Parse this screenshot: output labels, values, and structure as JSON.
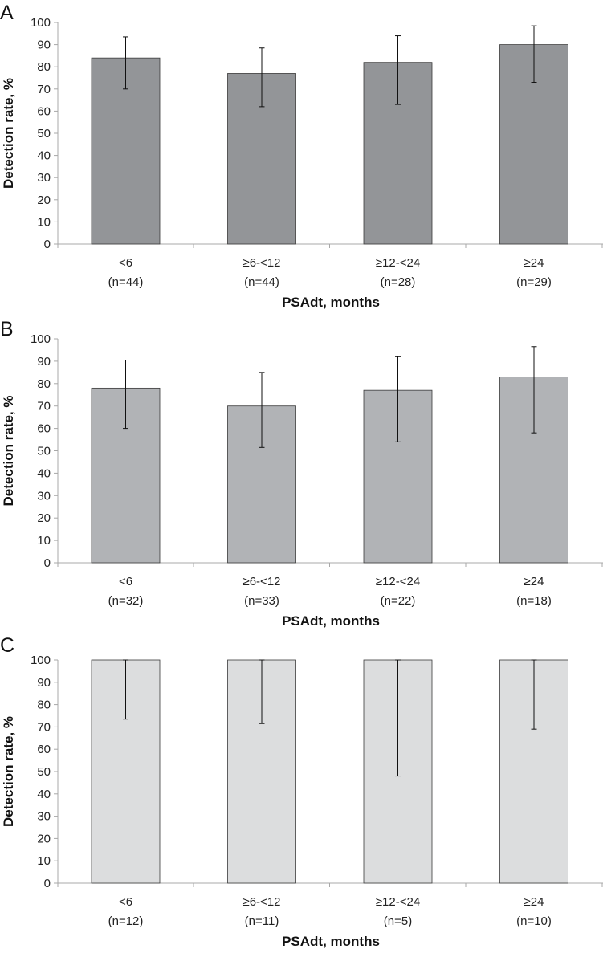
{
  "chart_data": [
    {
      "type": "bar",
      "panel": "A",
      "categories": [
        "<6",
        "≥6-<12",
        "≥12-<24",
        "≥24"
      ],
      "sample_sizes": [
        "(n=44)",
        "(n=44)",
        "(n=28)",
        "(n=29)"
      ],
      "values": [
        84,
        77,
        82,
        90
      ],
      "error_low": [
        70,
        62,
        63,
        73
      ],
      "error_high": [
        93.5,
        88.5,
        94,
        98.5
      ],
      "ylabel": "Detection rate, %",
      "xlabel": "PSAdt, months",
      "yticks": [
        0,
        10,
        20,
        30,
        40,
        50,
        60,
        70,
        80,
        90,
        100
      ],
      "ylim": [
        0,
        100
      ],
      "bar_color": "#939598"
    },
    {
      "type": "bar",
      "panel": "B",
      "categories": [
        "<6",
        "≥6-<12",
        "≥12-<24",
        "≥24"
      ],
      "sample_sizes": [
        "(n=32)",
        "(n=33)",
        "(n=22)",
        "(n=18)"
      ],
      "values": [
        78,
        70,
        77,
        83
      ],
      "error_low": [
        60,
        51.5,
        54,
        58
      ],
      "error_high": [
        90.5,
        85,
        92,
        96.5
      ],
      "ylabel": "Detection rate, %",
      "xlabel": "PSAdt, months",
      "yticks": [
        0,
        10,
        20,
        30,
        40,
        50,
        60,
        70,
        80,
        90,
        100
      ],
      "ylim": [
        0,
        100
      ],
      "bar_color": "#b1b3b6"
    },
    {
      "type": "bar",
      "panel": "C",
      "categories": [
        "<6",
        "≥6-<12",
        "≥12-<24",
        "≥24"
      ],
      "sample_sizes": [
        "(n=12)",
        "(n=11)",
        "(n=5)",
        "(n=10)"
      ],
      "values": [
        100,
        100,
        100,
        100
      ],
      "error_low": [
        73.5,
        71.5,
        48,
        69
      ],
      "error_high": [
        100,
        100,
        100,
        100
      ],
      "ylabel": "Detection rate, %",
      "xlabel": "PSAdt, months",
      "yticks": [
        0,
        10,
        20,
        30,
        40,
        50,
        60,
        70,
        80,
        90,
        100
      ],
      "ylim": [
        0,
        100
      ],
      "bar_color": "#dcddde"
    }
  ]
}
